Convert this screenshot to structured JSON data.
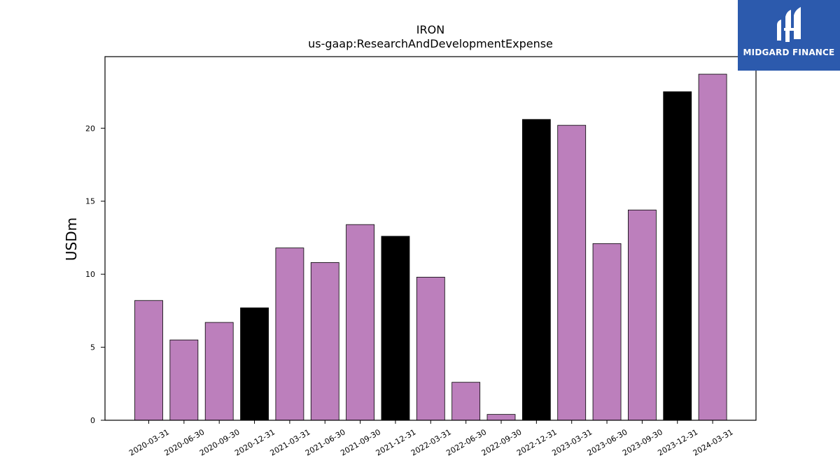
{
  "chart_data": {
    "type": "bar",
    "title": "IRON",
    "subtitle": "us-gaap:ResearchAndDevelopmentExpense",
    "ylabel": "USDm",
    "xlabel": "",
    "ylim": [
      0,
      24.9
    ],
    "yticks": [
      0,
      5,
      10,
      15,
      20
    ],
    "grid": false,
    "categories": [
      "2020-03-31",
      "2020-06-30",
      "2020-09-30",
      "2020-12-31",
      "2021-03-31",
      "2021-06-30",
      "2021-09-30",
      "2021-12-31",
      "2022-03-31",
      "2022-06-30",
      "2022-09-30",
      "2022-12-31",
      "2023-03-31",
      "2023-06-30",
      "2023-09-30",
      "2023-12-31",
      "2024-03-31"
    ],
    "values": [
      8.2,
      5.5,
      6.7,
      7.7,
      11.8,
      10.8,
      13.4,
      12.6,
      9.8,
      2.6,
      0.4,
      20.6,
      20.2,
      12.1,
      14.4,
      22.5,
      23.7
    ],
    "bar_colors": [
      "#bc7fbc",
      "#bc7fbc",
      "#bc7fbc",
      "#000000",
      "#bc7fbc",
      "#bc7fbc",
      "#bc7fbc",
      "#000000",
      "#bc7fbc",
      "#bc7fbc",
      "#bc7fbc",
      "#000000",
      "#bc7fbc",
      "#bc7fbc",
      "#bc7fbc",
      "#000000",
      "#bc7fbc"
    ]
  },
  "logo": {
    "text": "MIDGARD FINANCE",
    "background": "#2c5aad",
    "foreground": "#ffffff",
    "icon": "midgard-mh-monogram-icon"
  }
}
